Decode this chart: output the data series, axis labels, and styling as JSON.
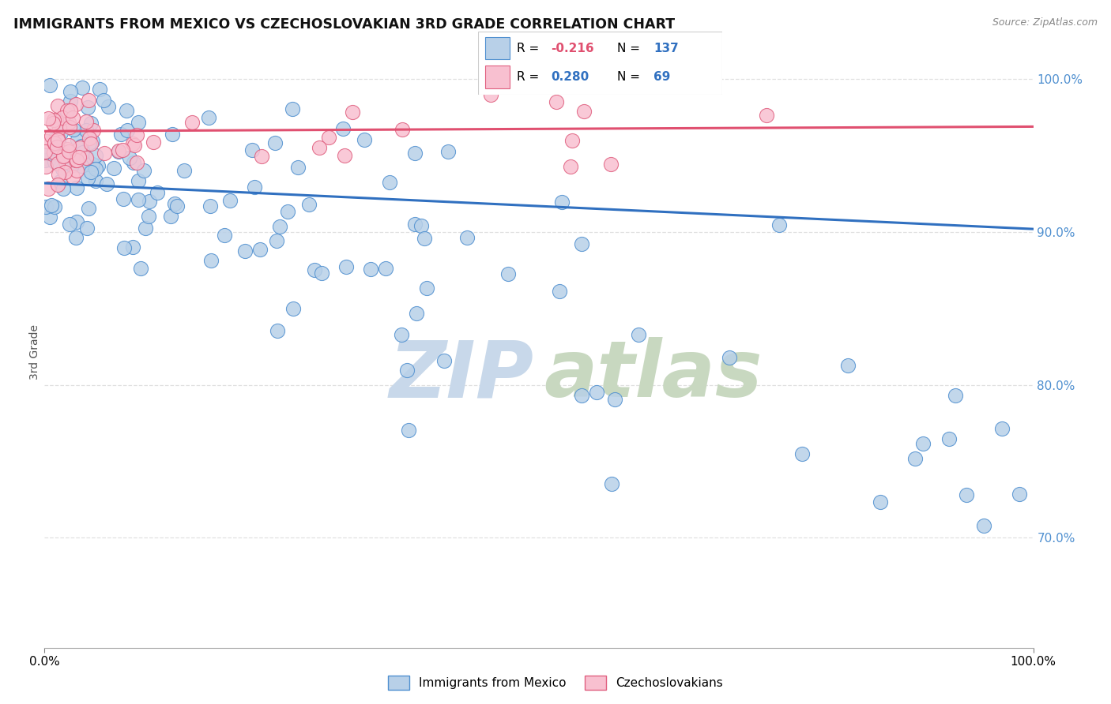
{
  "title": "IMMIGRANTS FROM MEXICO VS CZECHOSLOVAKIAN 3RD GRADE CORRELATION CHART",
  "source": "Source: ZipAtlas.com",
  "ylabel": "3rd Grade",
  "ytick_labels": [
    "100.0%",
    "90.0%",
    "80.0%",
    "70.0%"
  ],
  "ytick_values": [
    1.0,
    0.9,
    0.8,
    0.7
  ],
  "ymin": 0.628,
  "ymax": 1.015,
  "xmin": 0.0,
  "xmax": 1.0,
  "legend_r1_label": "R = ",
  "legend_r1_val": "-0.216",
  "legend_n1_label": "N = ",
  "legend_n1_val": "137",
  "legend_r2_label": "R = ",
  "legend_r2_val": "0.280",
  "legend_n2_label": "N = ",
  "legend_n2_val": "69",
  "blue_fill": "#b8d0e8",
  "blue_edge": "#5090d0",
  "pink_fill": "#f8c0d0",
  "pink_edge": "#e06080",
  "line_blue_color": "#3070c0",
  "line_pink_color": "#e05070",
  "blue_line_y_start": 0.932,
  "blue_line_y_end": 0.902,
  "pink_line_y_start": 0.966,
  "pink_line_y_end": 0.969,
  "watermark_zip_color": "#c8d8ea",
  "watermark_atlas_color": "#c8d8c0",
  "grid_color": "#e0e0e0",
  "title_fontsize": 12.5,
  "axis_label_color": "#555555"
}
